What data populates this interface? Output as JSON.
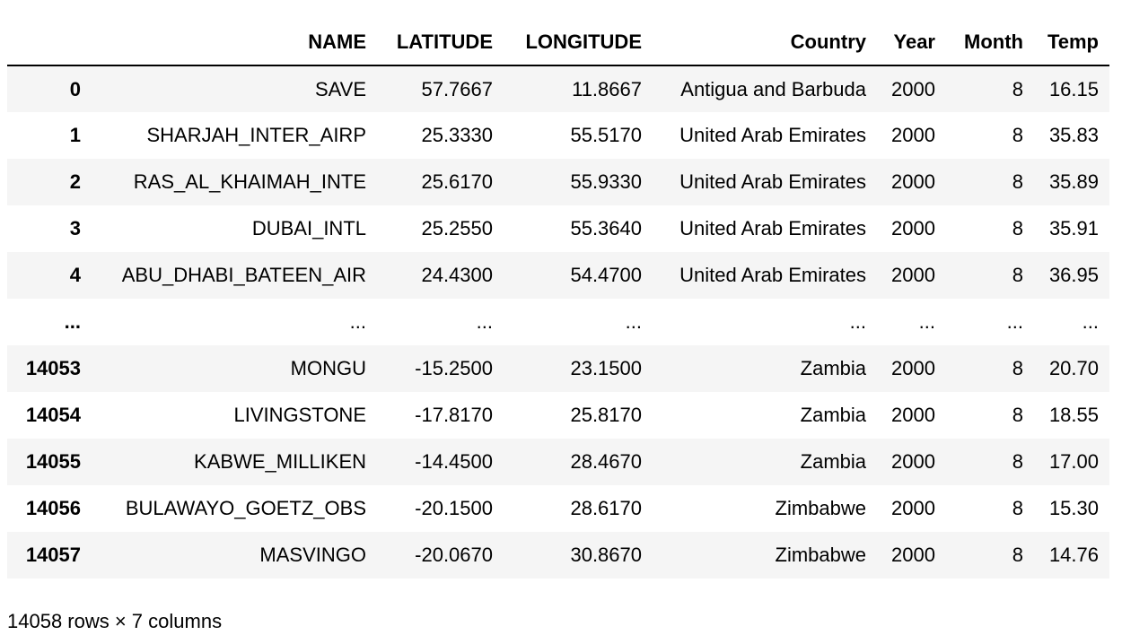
{
  "table": {
    "columns": [
      "",
      "NAME",
      "LATITUDE",
      "LONGITUDE",
      "Country",
      "Year",
      "Month",
      "Temp"
    ],
    "rows": [
      [
        "0",
        "SAVE",
        "57.7667",
        "11.8667",
        "Antigua and Barbuda",
        "2000",
        "8",
        "16.15"
      ],
      [
        "1",
        "SHARJAH_INTER_AIRP",
        "25.3330",
        "55.5170",
        "United Arab Emirates",
        "2000",
        "8",
        "35.83"
      ],
      [
        "2",
        "RAS_AL_KHAIMAH_INTE",
        "25.6170",
        "55.9330",
        "United Arab Emirates",
        "2000",
        "8",
        "35.89"
      ],
      [
        "3",
        "DUBAI_INTL",
        "25.2550",
        "55.3640",
        "United Arab Emirates",
        "2000",
        "8",
        "35.91"
      ],
      [
        "4",
        "ABU_DHABI_BATEEN_AIR",
        "24.4300",
        "54.4700",
        "United Arab Emirates",
        "2000",
        "8",
        "36.95"
      ],
      [
        "...",
        "...",
        "...",
        "...",
        "...",
        "...",
        "...",
        "..."
      ],
      [
        "14053",
        "MONGU",
        "-15.2500",
        "23.1500",
        "Zambia",
        "2000",
        "8",
        "20.70"
      ],
      [
        "14054",
        "LIVINGSTONE",
        "-17.8170",
        "25.8170",
        "Zambia",
        "2000",
        "8",
        "18.55"
      ],
      [
        "14055",
        "KABWE_MILLIKEN",
        "-14.4500",
        "28.4670",
        "Zambia",
        "2000",
        "8",
        "17.00"
      ],
      [
        "14056",
        "BULAWAYO_GOETZ_OBS",
        "-20.1500",
        "28.6170",
        "Zimbabwe",
        "2000",
        "8",
        "15.30"
      ],
      [
        "14057",
        "MASVINGO",
        "-20.0670",
        "30.8670",
        "Zimbabwe",
        "2000",
        "8",
        "14.76"
      ]
    ]
  },
  "shape_caption": "14058 rows × 7 columns",
  "colors": {
    "striped_row": "#f5f5f5",
    "header_rule": "#000000"
  }
}
